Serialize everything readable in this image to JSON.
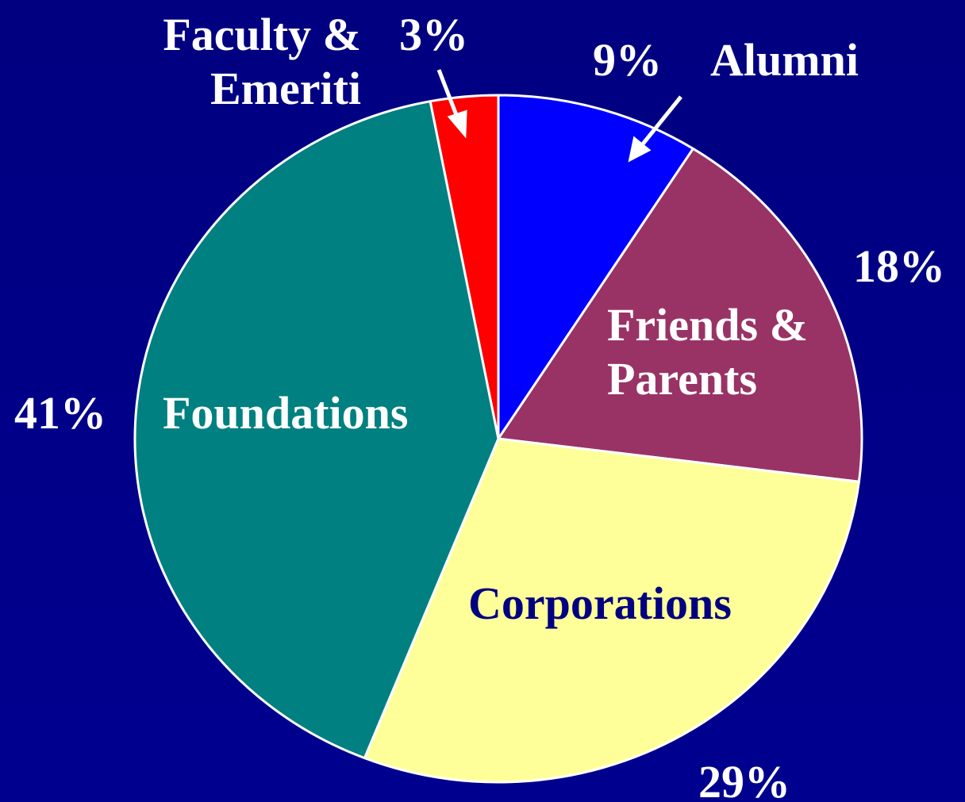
{
  "chart_data": {
    "type": "pie",
    "categories": [
      "Alumni",
      "Friends & Parents",
      "Corporations",
      "Foundations",
      "Faculty & Emeriti"
    ],
    "values": [
      9,
      18,
      29,
      41,
      3
    ],
    "value_labels": [
      "9%",
      "18%",
      "29%",
      "41%",
      "3%"
    ],
    "colors": [
      "#0000ff",
      "#993366",
      "#ffff99",
      "#008080",
      "#ff0000"
    ]
  }
}
